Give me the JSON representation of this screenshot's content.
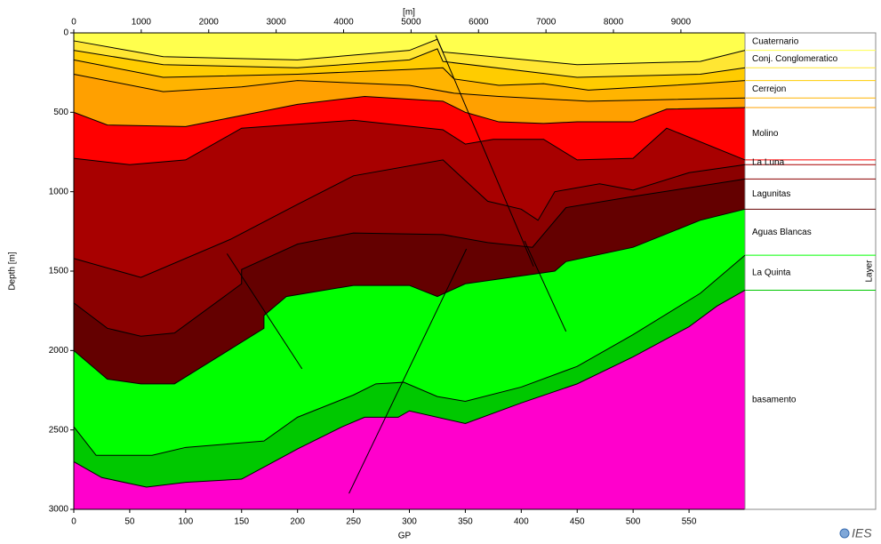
{
  "chart_data": {
    "type": "section",
    "x_label": "GP",
    "y_label": "Depth [m]",
    "x2_label": "[m]",
    "legend_title": "Layer",
    "logo": "IES",
    "xlim": [
      0,
      600
    ],
    "xticks": [
      0,
      50,
      100,
      150,
      200,
      250,
      300,
      350,
      400,
      450,
      500,
      550
    ],
    "x2lim": [
      0,
      9950
    ],
    "x2ticks": [
      0,
      1000,
      2000,
      3000,
      4000,
      5000,
      6000,
      7000,
      8000,
      9000
    ],
    "ylim": [
      0,
      3000
    ],
    "y_inverted": true,
    "yticks": [
      0,
      500,
      1000,
      1500,
      2000,
      2500,
      3000
    ],
    "boundaries": [
      {
        "x": [
          0,
          600
        ],
        "depth": [
          0,
          0
        ]
      },
      {
        "x": [
          0,
          80,
          200,
          300,
          325,
          330,
          450,
          560,
          600
        ],
        "depth": [
          50,
          150,
          170,
          110,
          40,
          120,
          200,
          180,
          110
        ]
      },
      {
        "x": [
          0,
          80,
          200,
          300,
          325,
          330,
          450,
          560,
          600
        ],
        "depth": [
          110,
          200,
          220,
          170,
          100,
          180,
          280,
          260,
          220
        ]
      },
      {
        "x": [
          0,
          80,
          200,
          300,
          330,
          340,
          380,
          420,
          460,
          560,
          600
        ],
        "depth": [
          170,
          280,
          260,
          230,
          220,
          290,
          330,
          320,
          360,
          320,
          300
        ]
      },
      {
        "x": [
          0,
          80,
          150,
          200,
          300,
          340,
          380,
          460,
          600
        ],
        "depth": [
          260,
          370,
          340,
          300,
          330,
          380,
          400,
          430,
          410
        ]
      },
      {
        "x": [
          0,
          30,
          100,
          200,
          260,
          330,
          350,
          380,
          420,
          450,
          500,
          530,
          600
        ],
        "depth": [
          500,
          580,
          590,
          450,
          400,
          430,
          500,
          560,
          570,
          560,
          560,
          480,
          470
        ]
      },
      {
        "x": [
          0,
          50,
          100,
          150,
          250,
          330,
          350,
          375,
          420,
          450,
          500,
          530,
          600
        ],
        "depth": [
          790,
          830,
          800,
          600,
          550,
          610,
          700,
          670,
          670,
          800,
          790,
          600,
          800
        ]
      },
      {
        "x": [
          0,
          60,
          140,
          200,
          250,
          330,
          370,
          400,
          415,
          430,
          470,
          500,
          550,
          600
        ],
        "depth": [
          1420,
          1540,
          1300,
          1080,
          900,
          800,
          1060,
          1110,
          1180,
          1000,
          950,
          990,
          880,
          830
        ]
      },
      {
        "x": [
          0,
          30,
          60,
          90,
          150,
          150,
          200,
          250,
          330,
          370,
          410,
          440,
          500,
          600
        ],
        "depth": [
          1700,
          1860,
          1910,
          1890,
          1580,
          1490,
          1330,
          1260,
          1270,
          1320,
          1350,
          1100,
          1030,
          920
        ]
      },
      {
        "x": [
          0,
          30,
          60,
          90,
          170,
          170,
          190,
          250,
          300,
          325,
          350,
          400,
          430,
          440,
          500,
          560,
          600
        ],
        "depth": [
          2000,
          2180,
          2210,
          2210,
          1860,
          1780,
          1660,
          1590,
          1590,
          1660,
          1580,
          1530,
          1500,
          1440,
          1350,
          1180,
          1110
        ]
      },
      {
        "x": [
          0,
          20,
          70,
          100,
          170,
          200,
          250,
          270,
          295,
          325,
          350,
          400,
          450,
          500,
          560,
          600
        ],
        "depth": [
          2480,
          2660,
          2660,
          2610,
          2570,
          2420,
          2280,
          2210,
          2200,
          2290,
          2320,
          2230,
          2100,
          1900,
          1640,
          1400
        ]
      },
      {
        "x": [
          0,
          25,
          65,
          100,
          150,
          200,
          240,
          260,
          290,
          300,
          350,
          400,
          450,
          500,
          550,
          575,
          600
        ],
        "depth": [
          2700,
          2800,
          2860,
          2830,
          2810,
          2620,
          2480,
          2420,
          2420,
          2380,
          2460,
          2330,
          2210,
          2040,
          1850,
          1720,
          1620
        ]
      },
      {
        "x": [
          0,
          600
        ],
        "depth": [
          3000,
          3000
        ]
      }
    ],
    "layers": [
      {
        "name": "Cuaternario",
        "color": "#ffff4d"
      },
      {
        "name": "Conj. Conglomeratico",
        "color": "#ffe633"
      },
      {
        "name": null,
        "color": "#ffcc00"
      },
      {
        "name": "Cerrejon",
        "color": "#ffb400"
      },
      {
        "name": null,
        "color": "#ffa000"
      },
      {
        "name": "Molino",
        "color": "#ff0000"
      },
      {
        "name": "La Luna",
        "color": "#a80000"
      },
      {
        "name": null,
        "color": "#8b0000"
      },
      {
        "name": "Lagunitas",
        "color": "#640000"
      },
      {
        "name": "Aguas Blancas",
        "color": "#00ff00"
      },
      {
        "name": "La Quinta",
        "color": "#00c800"
      },
      {
        "name": "basamento",
        "color": "#ff00cc"
      }
    ],
    "faults": [
      {
        "x": [
          323.5,
          411
        ],
        "depth": [
          15,
          1470
        ]
      },
      {
        "x": [
          137,
          204
        ],
        "depth": [
          1390,
          2115
        ]
      },
      {
        "x": [
          351,
          246
        ],
        "depth": [
          1360,
          2900
        ]
      },
      {
        "x": [
          403,
          440
        ],
        "depth": [
          1310,
          1880
        ]
      }
    ]
  }
}
